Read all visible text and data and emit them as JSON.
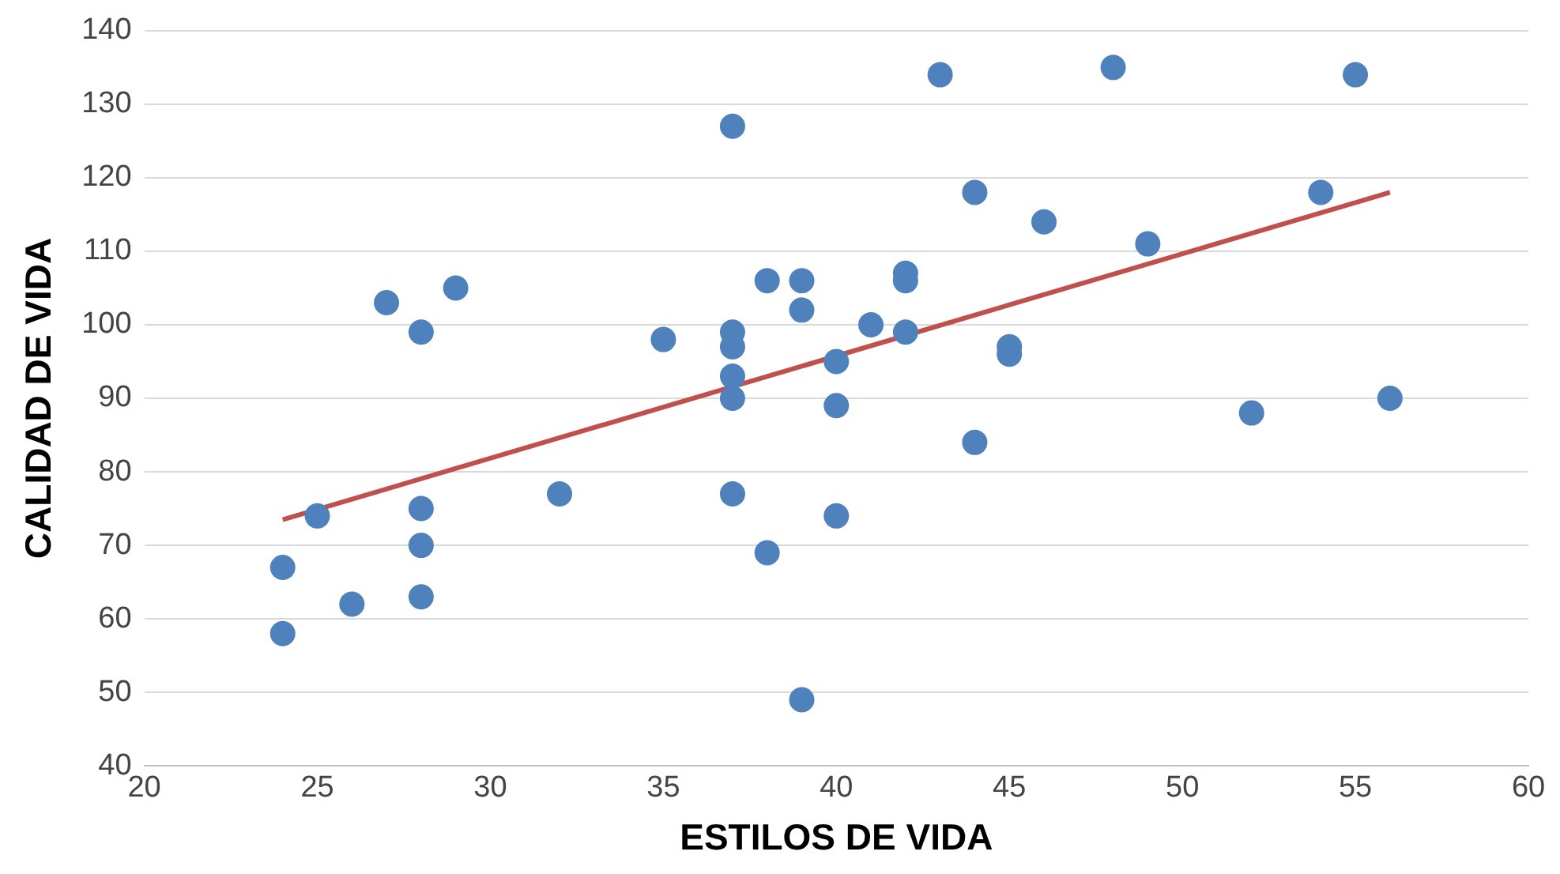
{
  "chart_data": {
    "type": "scatter",
    "xlabel": "ESTILOS DE VIDA",
    "ylabel": "CALIDAD DE VIDA",
    "xlim": [
      20,
      60
    ],
    "xticks": [
      20,
      25,
      30,
      35,
      40,
      45,
      50,
      55,
      60
    ],
    "ylim": [
      40,
      140
    ],
    "yticks": [
      40,
      50,
      60,
      70,
      80,
      90,
      100,
      110,
      120,
      130,
      140
    ],
    "grid": "y",
    "legend": false,
    "series": [
      {
        "marker": "circle",
        "color": "#4f81bd",
        "x": [
          24,
          24,
          25,
          26,
          27,
          28,
          28,
          28,
          28,
          29,
          32,
          35,
          37,
          37,
          37,
          37,
          37,
          37,
          38,
          38,
          39,
          39,
          39,
          40,
          40,
          40,
          41,
          42,
          42,
          42,
          43,
          44,
          44,
          45,
          45,
          46,
          48,
          49,
          52,
          54,
          55,
          56
        ],
        "values": [
          67,
          58,
          74,
          62,
          103,
          99,
          75,
          70,
          63,
          105,
          77,
          98,
          127,
          99,
          97,
          93,
          90,
          77,
          106,
          69,
          106,
          102,
          49,
          95,
          89,
          74,
          100,
          107,
          106,
          99,
          134,
          118,
          84,
          97,
          96,
          114,
          135,
          111,
          88,
          118,
          134,
          90
        ]
      },
      {
        "type": "line",
        "marker": "none",
        "color": "#c0504d",
        "x": [
          24,
          56
        ],
        "values": [
          73.5,
          118
        ]
      }
    ]
  }
}
